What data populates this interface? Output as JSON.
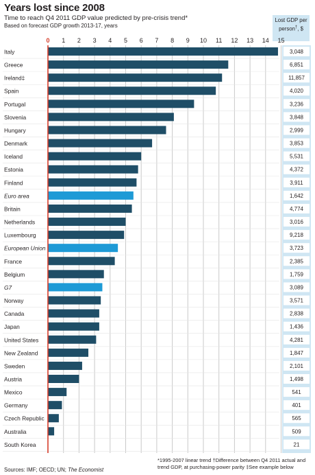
{
  "header": {
    "title": "Years lost since 2008",
    "subtitle": "Time to reach Q4 2011 GDP value predicted by pre-crisis trend*",
    "subtitle2": "Based on forecast GDP growth 2013-17, years",
    "gdp_col_line1": "Lost GDP per",
    "gdp_col_line2": "person",
    "gdp_col_mark": "†",
    "gdp_col_unit": ", $"
  },
  "footer": {
    "note1": "*1995-2007 linear trend   †Difference between Q4 2011 actual and",
    "note2": "trend GDP, at purchasing-power parity  ‡See example below",
    "source_prefix": "Sources: IMF; OECD; UN; ",
    "source_italic": "The Economist"
  },
  "colors": {
    "country_bar": "#1f4e67",
    "aggregate_bar": "#1e9ad6",
    "grid": "#c9c9c9",
    "zero_line": "#d63c2a",
    "value_panel": "#cfe6f3"
  },
  "chart_data": {
    "type": "bar",
    "orientation": "horizontal",
    "x_range": [
      0,
      15
    ],
    "x_ticks": [
      "0",
      "1",
      "2",
      "3",
      "4",
      "5",
      "6",
      "7",
      "8",
      "9",
      "10",
      "11",
      "12",
      "13",
      "14",
      "15"
    ],
    "grid": true,
    "series": [
      {
        "categories": [
          "Italy",
          "Greece",
          "Ireland‡",
          "Spain",
          "Portugal",
          "Slovenia",
          "Hungary",
          "Denmark",
          "Iceland",
          "Estonia",
          "Finland",
          "Euro area",
          "Britain",
          "Netherlands",
          "Luxembourg",
          "European Union",
          "France",
          "Belgium",
          "G7",
          "Norway",
          "Canada",
          "Japan",
          "United States",
          "New Zealand",
          "Sweden",
          "Austria",
          "Mexico",
          "Germany",
          "Czech Republic",
          "Australia",
          "South Korea"
        ],
        "values": [
          14.8,
          11.6,
          11.2,
          10.8,
          9.4,
          8.1,
          7.6,
          6.7,
          6.0,
          5.8,
          5.7,
          5.5,
          5.4,
          5.0,
          4.9,
          4.5,
          4.3,
          3.6,
          3.5,
          3.4,
          3.3,
          3.3,
          3.1,
          2.6,
          2.2,
          2.0,
          1.2,
          0.9,
          0.7,
          0.4,
          0.0
        ],
        "aggregate": [
          false,
          false,
          false,
          false,
          false,
          false,
          false,
          false,
          false,
          false,
          false,
          true,
          false,
          false,
          false,
          true,
          false,
          false,
          true,
          false,
          false,
          false,
          false,
          false,
          false,
          false,
          false,
          false,
          false,
          false,
          false
        ],
        "lost_gdp_per_person": [
          "3,048",
          "6,851",
          "11,857",
          "4,020",
          "3,236",
          "3,848",
          "2,999",
          "3,853",
          "5,531",
          "4,372",
          "3,911",
          "1,642",
          "4,774",
          "3,016",
          "9,218",
          "3,723",
          "2,385",
          "1,759",
          "3,089",
          "3,571",
          "2,838",
          "1,436",
          "4,281",
          "1,847",
          "2,101",
          "1,498",
          "541",
          "401",
          "565",
          "509",
          "21"
        ]
      }
    ]
  }
}
